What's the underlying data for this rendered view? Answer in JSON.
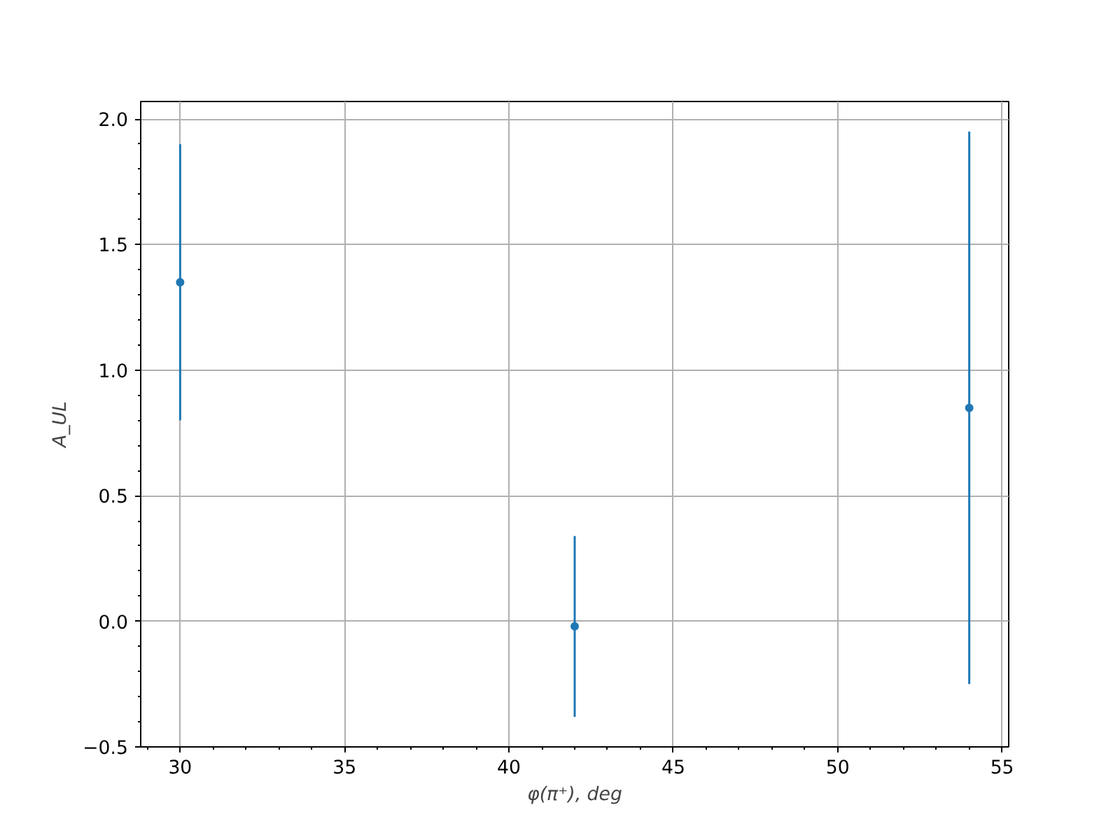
{
  "chart_data": {
    "type": "scatter",
    "xlabel": "φ(π⁺), deg",
    "ylabel": "A_UL",
    "x": [
      30,
      42,
      54
    ],
    "series": [
      {
        "color": "#1f77b4",
        "values": [
          1.35,
          -0.02,
          0.85
        ],
        "errors": [
          0.55,
          0.36,
          1.1
        ]
      }
    ],
    "marker": "circle",
    "grid": true,
    "xlim": [
      28.8,
      55.2
    ],
    "ylim": [
      -0.5,
      2.07
    ],
    "xticks": [
      30,
      35,
      40,
      45,
      50,
      55,
      {
        "value": 29,
        "label": null
      },
      {
        "value": 31,
        "label": null
      },
      {
        "value": 32,
        "label": null
      },
      {
        "value": 33,
        "label": null
      },
      {
        "value": 34,
        "label": null
      },
      {
        "value": 36,
        "label": null
      },
      {
        "value": 37,
        "label": null
      },
      {
        "value": 38,
        "label": null
      },
      {
        "value": 39,
        "label": null
      },
      {
        "value": 41,
        "label": null
      },
      {
        "value": 42,
        "label": null
      },
      {
        "value": 43,
        "label": null
      },
      {
        "value": 44,
        "label": null
      },
      {
        "value": 46,
        "label": null
      },
      {
        "value": 47,
        "label": null
      },
      {
        "value": 48,
        "label": null
      },
      {
        "value": 49,
        "label": null
      },
      {
        "value": 51,
        "label": null
      },
      {
        "value": 52,
        "label": null
      },
      {
        "value": 53,
        "label": null
      },
      {
        "value": 54,
        "label": null
      }
    ],
    "yticks": [
      {
        "value": -0.5,
        "label": "−0.5"
      },
      {
        "value": 0,
        "label": "0.0"
      },
      {
        "value": 0.5,
        "label": "0.5"
      },
      {
        "value": 1,
        "label": "1.0"
      },
      {
        "value": 1.5,
        "label": "1.5"
      },
      {
        "value": 2,
        "label": "2.0"
      },
      {
        "value": -0.4,
        "label": null
      },
      {
        "value": -0.3,
        "label": null
      },
      {
        "value": -0.2,
        "label": null
      },
      {
        "value": -0.1,
        "label": null
      },
      {
        "value": 0.1,
        "label": null
      },
      {
        "value": 0.2,
        "label": null
      },
      {
        "value": 0.3,
        "label": null
      },
      {
        "value": 0.4,
        "label": null
      },
      {
        "value": 0.6,
        "label": null
      },
      {
        "value": 0.7,
        "label": null
      },
      {
        "value": 0.8,
        "label": null
      },
      {
        "value": 0.9,
        "label": null
      },
      {
        "value": 1.1,
        "label": null
      },
      {
        "value": 1.2,
        "label": null
      },
      {
        "value": 1.3,
        "label": null
      },
      {
        "value": 1.4,
        "label": null
      },
      {
        "value": 1.6,
        "label": null
      },
      {
        "value": 1.7,
        "label": null
      },
      {
        "value": 1.8,
        "label": null
      },
      {
        "value": 1.9,
        "label": null
      }
    ]
  }
}
